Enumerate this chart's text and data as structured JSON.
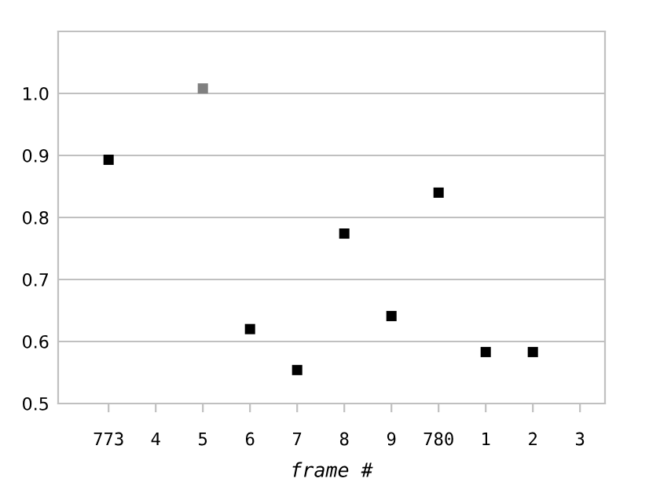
{
  "chart_data": {
    "type": "scatter",
    "xlabel": "frame #",
    "categories": [
      "773",
      "4",
      "5",
      "6",
      "7",
      "8",
      "9",
      "780",
      "1",
      "2",
      "3"
    ],
    "values": [
      0.893,
      null,
      1.008,
      0.62,
      0.554,
      0.774,
      0.641,
      0.84,
      0.583,
      0.583,
      null
    ],
    "colors": [
      "#000000",
      "#000000",
      "#808080",
      "#000000",
      "#000000",
      "#000000",
      "#000000",
      "#000000",
      "#000000",
      "#000000",
      "#000000"
    ],
    "ylim": [
      0.5,
      1.1
    ],
    "yticks": [
      0.5,
      0.6,
      0.7,
      0.8,
      0.9,
      {
        "value": 1.0,
        "label": "1.0"
      }
    ],
    "grid": "y",
    "marker": "square",
    "legend": false
  }
}
